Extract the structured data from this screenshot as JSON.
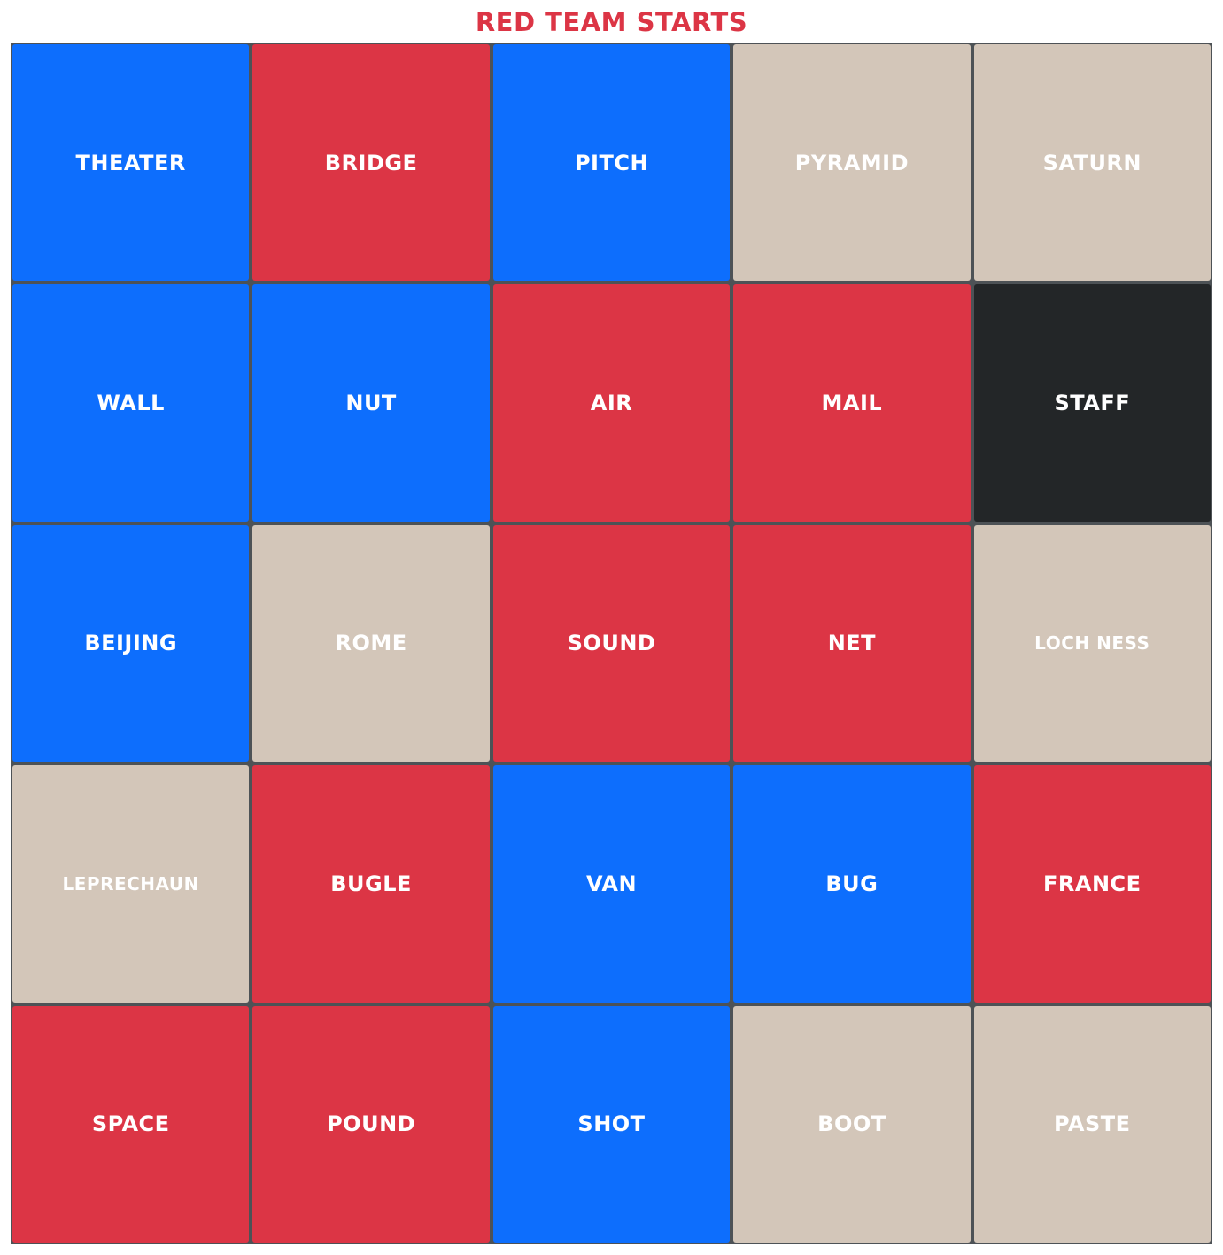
{
  "title": "RED TEAM STARTS",
  "colors": {
    "red": "#dc3545",
    "blue": "#0d6efd",
    "neutral": "#d3c6b9",
    "assassin": "#232628",
    "title": "#dc3545"
  },
  "cards": [
    {
      "word": "THEATER",
      "team": "blue"
    },
    {
      "word": "BRIDGE",
      "team": "red"
    },
    {
      "word": "PITCH",
      "team": "blue"
    },
    {
      "word": "PYRAMID",
      "team": "neutral"
    },
    {
      "word": "SATURN",
      "team": "neutral"
    },
    {
      "word": "WALL",
      "team": "blue"
    },
    {
      "word": "NUT",
      "team": "blue"
    },
    {
      "word": "AIR",
      "team": "red"
    },
    {
      "word": "MAIL",
      "team": "red"
    },
    {
      "word": "STAFF",
      "team": "assassin"
    },
    {
      "word": "BEIJING",
      "team": "blue"
    },
    {
      "word": "ROME",
      "team": "neutral"
    },
    {
      "word": "SOUND",
      "team": "red"
    },
    {
      "word": "NET",
      "team": "red"
    },
    {
      "word": "LOCH NESS",
      "team": "neutral"
    },
    {
      "word": "LEPRECHAUN",
      "team": "neutral"
    },
    {
      "word": "BUGLE",
      "team": "red"
    },
    {
      "word": "VAN",
      "team": "blue"
    },
    {
      "word": "BUG",
      "team": "blue"
    },
    {
      "word": "FRANCE",
      "team": "red"
    },
    {
      "word": "SPACE",
      "team": "red"
    },
    {
      "word": "POUND",
      "team": "red"
    },
    {
      "word": "SHOT",
      "team": "blue"
    },
    {
      "word": "BOOT",
      "team": "neutral"
    },
    {
      "word": "PASTE",
      "team": "neutral"
    }
  ]
}
